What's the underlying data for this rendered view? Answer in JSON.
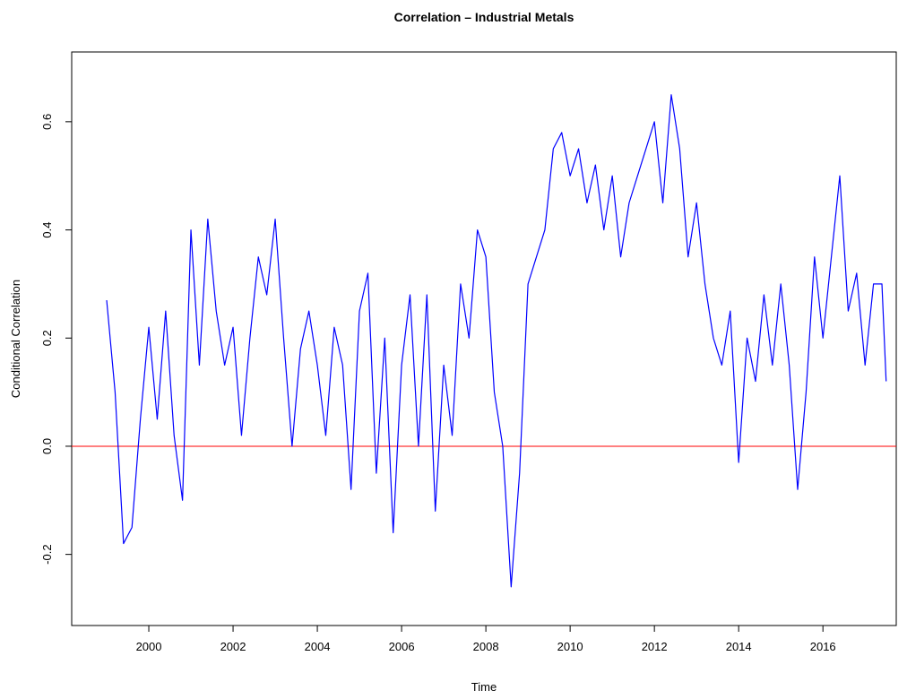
{
  "chart_data": {
    "type": "line",
    "title": "Correlation – Industrial Metals",
    "x_label": "Time",
    "y_label": "Conditional Correlation",
    "x": [
      1999.0,
      1999.2,
      1999.4,
      1999.6,
      1999.8,
      2000.0,
      2000.2,
      2000.4,
      2000.6,
      2000.8,
      2001.0,
      2001.2,
      2001.4,
      2001.6,
      2001.8,
      2002.0,
      2002.2,
      2002.4,
      2002.6,
      2002.8,
      2003.0,
      2003.2,
      2003.4,
      2003.6,
      2003.8,
      2004.0,
      2004.2,
      2004.4,
      2004.6,
      2004.8,
      2005.0,
      2005.2,
      2005.4,
      2005.6,
      2005.8,
      2006.0,
      2006.2,
      2006.4,
      2006.6,
      2006.8,
      2007.0,
      2007.2,
      2007.4,
      2007.6,
      2007.8,
      2008.0,
      2008.2,
      2008.4,
      2008.6,
      2008.8,
      2009.0,
      2009.2,
      2009.4,
      2009.6,
      2009.8,
      2010.0,
      2010.2,
      2010.4,
      2010.6,
      2010.8,
      2011.0,
      2011.2,
      2011.4,
      2011.6,
      2011.8,
      2012.0,
      2012.2,
      2012.4,
      2012.6,
      2012.8,
      2013.0,
      2013.2,
      2013.4,
      2013.6,
      2013.8,
      2014.0,
      2014.2,
      2014.4,
      2014.6,
      2014.8,
      2015.0,
      2015.2,
      2015.4,
      2015.6,
      2015.8,
      2016.0,
      2016.2,
      2016.4,
      2016.6,
      2016.8,
      2017.0,
      2017.2,
      2017.4,
      2017.5
    ],
    "values": [
      0.27,
      0.1,
      -0.18,
      -0.15,
      0.05,
      0.22,
      0.05,
      0.25,
      0.02,
      -0.1,
      0.4,
      0.15,
      0.42,
      0.25,
      0.15,
      0.22,
      0.02,
      0.2,
      0.35,
      0.28,
      0.42,
      0.2,
      0.0,
      0.18,
      0.25,
      0.15,
      0.02,
      0.22,
      0.15,
      -0.08,
      0.25,
      0.32,
      -0.05,
      0.2,
      -0.16,
      0.15,
      0.28,
      0.0,
      0.28,
      -0.12,
      0.15,
      0.02,
      0.3,
      0.2,
      0.4,
      0.35,
      0.1,
      0.0,
      -0.26,
      -0.05,
      0.3,
      0.35,
      0.4,
      0.55,
      0.58,
      0.5,
      0.55,
      0.45,
      0.52,
      0.4,
      0.5,
      0.35,
      0.45,
      0.5,
      0.55,
      0.6,
      0.45,
      0.65,
      0.55,
      0.35,
      0.45,
      0.3,
      0.2,
      0.15,
      0.25,
      -0.03,
      0.2,
      0.12,
      0.28,
      0.15,
      0.3,
      0.15,
      -0.08,
      0.1,
      0.35,
      0.2,
      0.35,
      0.5,
      0.25,
      0.32,
      0.15,
      0.3,
      0.3,
      0.12
    ],
    "color": "#0000ff",
    "reference_line": {
      "value": 0,
      "color": "#ff0000"
    },
    "xlim": [
      1998.17,
      2017.74
    ],
    "xticks": [
      2000,
      2002,
      2004,
      2006,
      2008,
      2010,
      2012,
      2014,
      2016
    ],
    "ylim": [
      -0.3315,
      0.729
    ],
    "yticks": [
      -0.2,
      {
        "value": 0,
        "label": "0.0"
      },
      0.2,
      0.4,
      0.6
    ]
  }
}
